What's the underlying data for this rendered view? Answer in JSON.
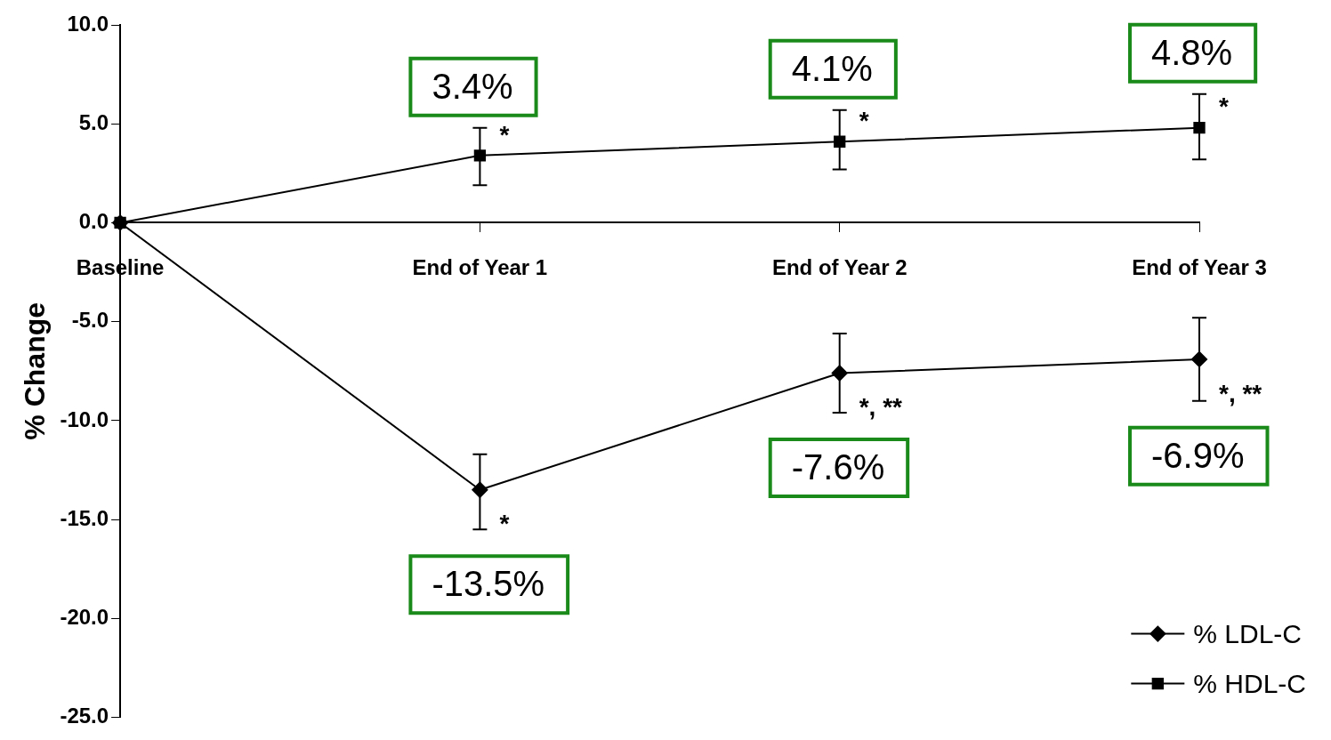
{
  "chart_data": {
    "type": "line",
    "ylabel": "% Change",
    "categories": [
      "Baseline",
      "End of Year 1",
      "End of Year 2",
      "End of Year 3"
    ],
    "series": [
      {
        "name": "% LDL-C",
        "color": "#000000",
        "marker": "diamond",
        "values": [
          0,
          -13.5,
          -7.6,
          -6.9
        ],
        "errors": [
          null,
          [
            -15.5,
            -11.7
          ],
          [
            -9.6,
            -5.6
          ],
          [
            -9.0,
            -4.8
          ]
        ],
        "value_labels": [
          null,
          "-13.5%",
          "-7.6%",
          "-6.9%"
        ]
      },
      {
        "name": "% HDL-C",
        "color": "#000000",
        "marker": "square",
        "values": [
          0,
          3.4,
          4.1,
          4.8
        ],
        "errors": [
          null,
          [
            1.9,
            4.8
          ],
          [
            2.7,
            5.7
          ],
          [
            3.2,
            6.5
          ]
        ],
        "value_labels": [
          null,
          "3.4%",
          "4.1%",
          "4.8%"
        ]
      }
    ],
    "ylim": [
      -25,
      10
    ],
    "yticks": [
      {
        "value": -25,
        "label": "-25.0"
      },
      {
        "value": -20,
        "label": "-20.0"
      },
      {
        "value": -15,
        "label": "-15.0"
      },
      {
        "value": -10,
        "label": "-10.0"
      },
      {
        "value": -5,
        "label": "-5.0"
      },
      {
        "value": 0,
        "label": "0.0"
      },
      {
        "value": 5,
        "label": "5.0"
      },
      {
        "value": 10,
        "label": "10.0"
      }
    ],
    "annotations": [
      {
        "text": "*",
        "x": "End of Year 1",
        "y": 3.4
      },
      {
        "text": "*",
        "x": "End of Year 2",
        "y": 4.1
      },
      {
        "text": "*",
        "x": "End of Year 3",
        "y": 4.8
      },
      {
        "text": "*",
        "x": "End of Year 1",
        "y": -13.5
      },
      {
        "text": "*, **",
        "x": "End of Year 2",
        "y": -7.6
      },
      {
        "text": "*, **",
        "x": "End of Year 3",
        "y": -6.9
      }
    ],
    "grid": false,
    "legend": "bottom right",
    "line_style": "solid"
  }
}
